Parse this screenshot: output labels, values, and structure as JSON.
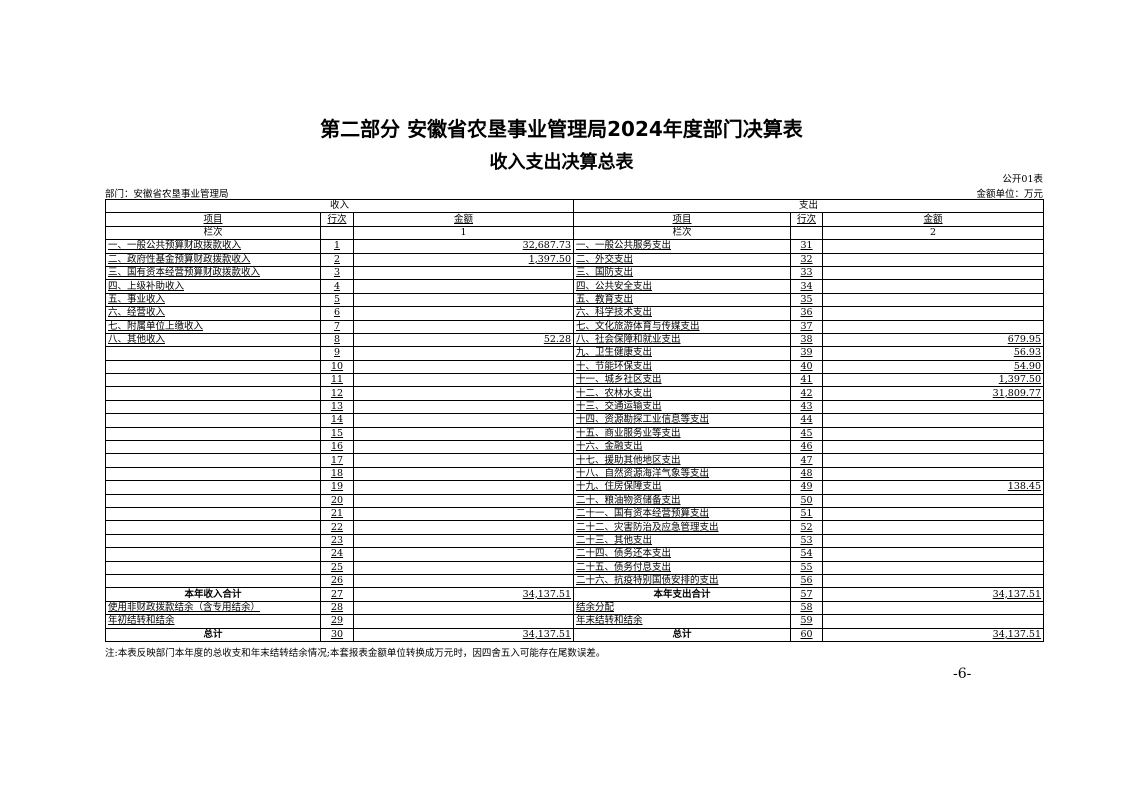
{
  "title": "第二部分  安徽省农垦事业管理局2024年度部门决算表",
  "subtitle": "收入支出决算总表",
  "table_code": "公开01表",
  "department": "部门：安徽省农垦事业管理局",
  "unit": "金额单位：万元",
  "headers": {
    "income": "收入",
    "expense": "支出",
    "item": "项目",
    "line_no": "行次",
    "amount": "金额",
    "column_index": "栏次",
    "income_col": "1",
    "expense_col": "2"
  },
  "rows": [
    {
      "li": "一、一般公共预算财政拨款收入",
      "ln": "1",
      "la": "32,687.73",
      "ri": "一、一般公共服务支出",
      "rn": "31",
      "ra": ""
    },
    {
      "li": "二、政府性基金预算财政拨款收入",
      "ln": "2",
      "la": "1,397.50",
      "ri": "二、外交支出",
      "rn": "32",
      "ra": ""
    },
    {
      "li": "三、国有资本经营预算财政拨款收入",
      "ln": "3",
      "la": "",
      "ri": "三、国防支出",
      "rn": "33",
      "ra": ""
    },
    {
      "li": "四、上级补助收入",
      "ln": "4",
      "la": "",
      "ri": "四、公共安全支出",
      "rn": "34",
      "ra": ""
    },
    {
      "li": "五、事业收入",
      "ln": "5",
      "la": "",
      "ri": "五、教育支出",
      "rn": "35",
      "ra": ""
    },
    {
      "li": "六、经营收入",
      "ln": "6",
      "la": "",
      "ri": "六、科学技术支出",
      "rn": "36",
      "ra": ""
    },
    {
      "li": "七、附属单位上缴收入",
      "ln": "7",
      "la": "",
      "ri": "七、文化旅游体育与传媒支出",
      "rn": "37",
      "ra": ""
    },
    {
      "li": "八、其他收入",
      "ln": "8",
      "la": "52.28",
      "ri": "八、社会保障和就业支出",
      "rn": "38",
      "ra": "679.95"
    },
    {
      "li": "",
      "ln": "9",
      "la": "",
      "ri": "九、卫生健康支出",
      "rn": "39",
      "ra": "56.93"
    },
    {
      "li": "",
      "ln": "10",
      "la": "",
      "ri": "十、节能环保支出",
      "rn": "40",
      "ra": "54.90"
    },
    {
      "li": "",
      "ln": "11",
      "la": "",
      "ri": "十一、城乡社区支出",
      "rn": "41",
      "ra": "1,397.50"
    },
    {
      "li": "",
      "ln": "12",
      "la": "",
      "ri": "十二、农林水支出",
      "rn": "42",
      "ra": "31,809.77"
    },
    {
      "li": "",
      "ln": "13",
      "la": "",
      "ri": "十三、交通运输支出",
      "rn": "43",
      "ra": ""
    },
    {
      "li": "",
      "ln": "14",
      "la": "",
      "ri": "十四、资源勘探工业信息等支出",
      "rn": "44",
      "ra": ""
    },
    {
      "li": "",
      "ln": "15",
      "la": "",
      "ri": "十五、商业服务业等支出",
      "rn": "45",
      "ra": ""
    },
    {
      "li": "",
      "ln": "16",
      "la": "",
      "ri": "十六、金融支出",
      "rn": "46",
      "ra": ""
    },
    {
      "li": "",
      "ln": "17",
      "la": "",
      "ri": "十七、援助其他地区支出",
      "rn": "47",
      "ra": ""
    },
    {
      "li": "",
      "ln": "18",
      "la": "",
      "ri": "十八、自然资源海洋气象等支出",
      "rn": "48",
      "ra": ""
    },
    {
      "li": "",
      "ln": "19",
      "la": "",
      "ri": "十九、住房保障支出",
      "rn": "49",
      "ra": "138.45"
    },
    {
      "li": "",
      "ln": "20",
      "la": "",
      "ri": "二十、粮油物资储备支出",
      "rn": "50",
      "ra": ""
    },
    {
      "li": "",
      "ln": "21",
      "la": "",
      "ri": "二十一、国有资本经营预算支出",
      "rn": "51",
      "ra": ""
    },
    {
      "li": "",
      "ln": "22",
      "la": "",
      "ri": "二十二、灾害防治及应急管理支出",
      "rn": "52",
      "ra": ""
    },
    {
      "li": "",
      "ln": "23",
      "la": "",
      "ri": "二十三、其他支出",
      "rn": "53",
      "ra": ""
    },
    {
      "li": "",
      "ln": "24",
      "la": "",
      "ri": "二十四、债务还本支出",
      "rn": "54",
      "ra": ""
    },
    {
      "li": "",
      "ln": "25",
      "la": "",
      "ri": "二十五、债务付息支出",
      "rn": "55",
      "ra": ""
    },
    {
      "li": "",
      "ln": "26",
      "la": "",
      "ri": "二十六、抗疫特别国债安排的支出",
      "rn": "56",
      "ra": ""
    },
    {
      "li": "本年收入合计",
      "ln": "27",
      "la": "34,137.51",
      "ri": "本年支出合计",
      "rn": "57",
      "ra": "34,137.51",
      "bold": true
    },
    {
      "li": "使用非财政拨款结余（含专用结余）",
      "ln": "28",
      "la": "",
      "ri": "结余分配",
      "rn": "58",
      "ra": ""
    },
    {
      "li": "年初结转和结余",
      "ln": "29",
      "la": "",
      "ri": "年末结转和结余",
      "rn": "59",
      "ra": ""
    },
    {
      "li": "总计",
      "ln": "30",
      "la": "34,137.51",
      "ri": "总计",
      "rn": "60",
      "ra": "34,137.51",
      "bold": true
    }
  ],
  "note": "注:本表反映部门本年度的总收支和年末结转结余情况;本套报表金额单位转换成万元时，因四舍五入可能存在尾数误差。",
  "page_number": "-6-"
}
